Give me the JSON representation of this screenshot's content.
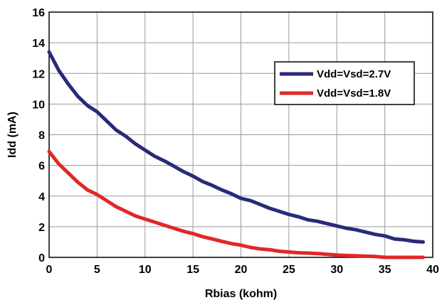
{
  "chart_data": {
    "type": "line",
    "xlabel": "Rbias (kohm)",
    "ylabel": "Idd (mA)",
    "xlim": [
      0,
      40
    ],
    "ylim": [
      0,
      16
    ],
    "xticks": [
      "0",
      "5",
      "10",
      "15",
      "20",
      "25",
      "30",
      "35",
      "40"
    ],
    "yticks": [
      "0",
      "2",
      "4",
      "6",
      "8",
      "10",
      "12",
      "14",
      "16"
    ],
    "grid": true,
    "legend_position": "top-right",
    "series": [
      {
        "name": "Vdd=Vsd=2.7V",
        "color": "#2a2a7a",
        "x": [
          0,
          1,
          2,
          3,
          4,
          5,
          6,
          7,
          8,
          9,
          10,
          11,
          12,
          13,
          14,
          15,
          16,
          17,
          18,
          19,
          20,
          21,
          22,
          23,
          24,
          25,
          26,
          27,
          28,
          29,
          30,
          31,
          32,
          33,
          34,
          35,
          36,
          37,
          38,
          39
        ],
        "values": [
          13.4,
          12.2,
          11.3,
          10.5,
          9.9,
          9.5,
          8.9,
          8.3,
          7.9,
          7.4,
          7.0,
          6.6,
          6.3,
          5.95,
          5.6,
          5.3,
          4.95,
          4.7,
          4.4,
          4.15,
          3.85,
          3.7,
          3.45,
          3.2,
          3.0,
          2.8,
          2.65,
          2.45,
          2.35,
          2.2,
          2.05,
          1.9,
          1.8,
          1.65,
          1.5,
          1.4,
          1.2,
          1.15,
          1.05,
          1.0
        ]
      },
      {
        "name": "Vdd=Vsd=1.8V",
        "color": "#e02828",
        "x": [
          0,
          1,
          2,
          3,
          4,
          5,
          6,
          7,
          8,
          9,
          10,
          11,
          12,
          13,
          14,
          15,
          16,
          17,
          18,
          19,
          20,
          21,
          22,
          23,
          24,
          25,
          26,
          27,
          28,
          29,
          30,
          31,
          32,
          33,
          34,
          35,
          36,
          37,
          38,
          39
        ],
        "values": [
          6.9,
          6.1,
          5.5,
          4.9,
          4.4,
          4.1,
          3.7,
          3.3,
          3.0,
          2.7,
          2.5,
          2.3,
          2.1,
          1.9,
          1.7,
          1.55,
          1.35,
          1.2,
          1.05,
          0.9,
          0.8,
          0.65,
          0.55,
          0.5,
          0.4,
          0.35,
          0.3,
          0.28,
          0.25,
          0.2,
          0.15,
          0.12,
          0.1,
          0.08,
          0.06,
          0.0,
          0.0,
          0.0,
          0.0,
          0.0
        ]
      }
    ]
  }
}
